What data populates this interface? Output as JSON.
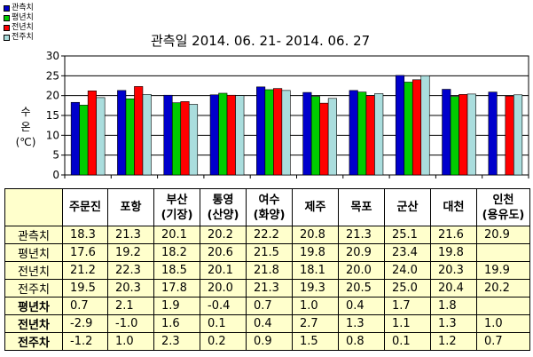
{
  "chart_data": {
    "type": "bar",
    "title": "관측일 2014. 06. 21-  2014. 06. 27",
    "ylabel": [
      "수",
      "온",
      "(℃)"
    ],
    "ylim": [
      0,
      30
    ],
    "yticks": [
      "30",
      "25",
      "20",
      "15",
      "10",
      "5",
      "0"
    ],
    "categories": [
      "주문진",
      "포항",
      "부산 (기장)",
      "통영 (산양)",
      "여수 (화양)",
      "제주",
      "목포",
      "군산",
      "대천",
      "인천 (용유도)"
    ],
    "categories_header": [
      [
        "주문진"
      ],
      [
        "포항"
      ],
      [
        "부산",
        "(기장)"
      ],
      [
        "통영",
        "(산양)"
      ],
      [
        "여수",
        "(화양)"
      ],
      [
        "제주"
      ],
      [
        "목포"
      ],
      [
        "군산"
      ],
      [
        "대천"
      ],
      [
        "인천",
        "(용유도)"
      ]
    ],
    "series": [
      {
        "name": "관측치",
        "color": "#0000cc",
        "values": [
          18.3,
          21.3,
          20.1,
          20.2,
          22.2,
          20.8,
          21.3,
          25.1,
          21.6,
          20.9
        ]
      },
      {
        "name": "평년치",
        "color": "#00cc00",
        "values": [
          17.6,
          19.2,
          18.2,
          20.6,
          21.5,
          19.8,
          20.9,
          23.4,
          19.8,
          null
        ]
      },
      {
        "name": "전년치",
        "color": "#ff0000",
        "values": [
          21.2,
          22.3,
          18.5,
          20.1,
          21.8,
          18.1,
          20.0,
          24.0,
          20.3,
          19.9
        ]
      },
      {
        "name": "전주치",
        "color": "#aadddd",
        "values": [
          19.5,
          20.3,
          17.8,
          20.0,
          21.3,
          19.3,
          20.5,
          25.0,
          20.4,
          20.2
        ]
      }
    ],
    "legend_position": "top-left",
    "grid": true
  },
  "table": {
    "rows": [
      {
        "label": "관측치",
        "bold": false,
        "cells": [
          "18.3",
          "21.3",
          "20.1",
          "20.2",
          "22.2",
          "20.8",
          "21.3",
          "25.1",
          "21.6",
          "20.9"
        ]
      },
      {
        "label": "평년치",
        "bold": false,
        "cells": [
          "17.6",
          "19.2",
          "18.2",
          "20.6",
          "21.5",
          "19.8",
          "20.9",
          "23.4",
          "19.8",
          ""
        ]
      },
      {
        "label": "전년치",
        "bold": false,
        "cells": [
          "21.2",
          "22.3",
          "18.5",
          "20.1",
          "21.8",
          "18.1",
          "20.0",
          "24.0",
          "20.3",
          "19.9"
        ]
      },
      {
        "label": "전주치",
        "bold": false,
        "cells": [
          "19.5",
          "20.3",
          "17.8",
          "20.0",
          "21.3",
          "19.3",
          "20.5",
          "25.0",
          "20.4",
          "20.2"
        ]
      },
      {
        "label": "평년차",
        "bold": true,
        "cells": [
          "0.7",
          "2.1",
          "1.9",
          "-0.4",
          "0.7",
          "1.0",
          "0.4",
          "1.7",
          "1.8",
          ""
        ]
      },
      {
        "label": "전년차",
        "bold": true,
        "cells": [
          "-2.9",
          "-1.0",
          "1.6",
          "0.1",
          "0.4",
          "2.7",
          "1.3",
          "1.1",
          "1.3",
          "1.0"
        ]
      },
      {
        "label": "전주차",
        "bold": true,
        "cells": [
          "-1.2",
          "1.0",
          "2.3",
          "0.2",
          "0.9",
          "1.5",
          "0.8",
          "0.1",
          "1.2",
          "0.7"
        ]
      }
    ]
  }
}
